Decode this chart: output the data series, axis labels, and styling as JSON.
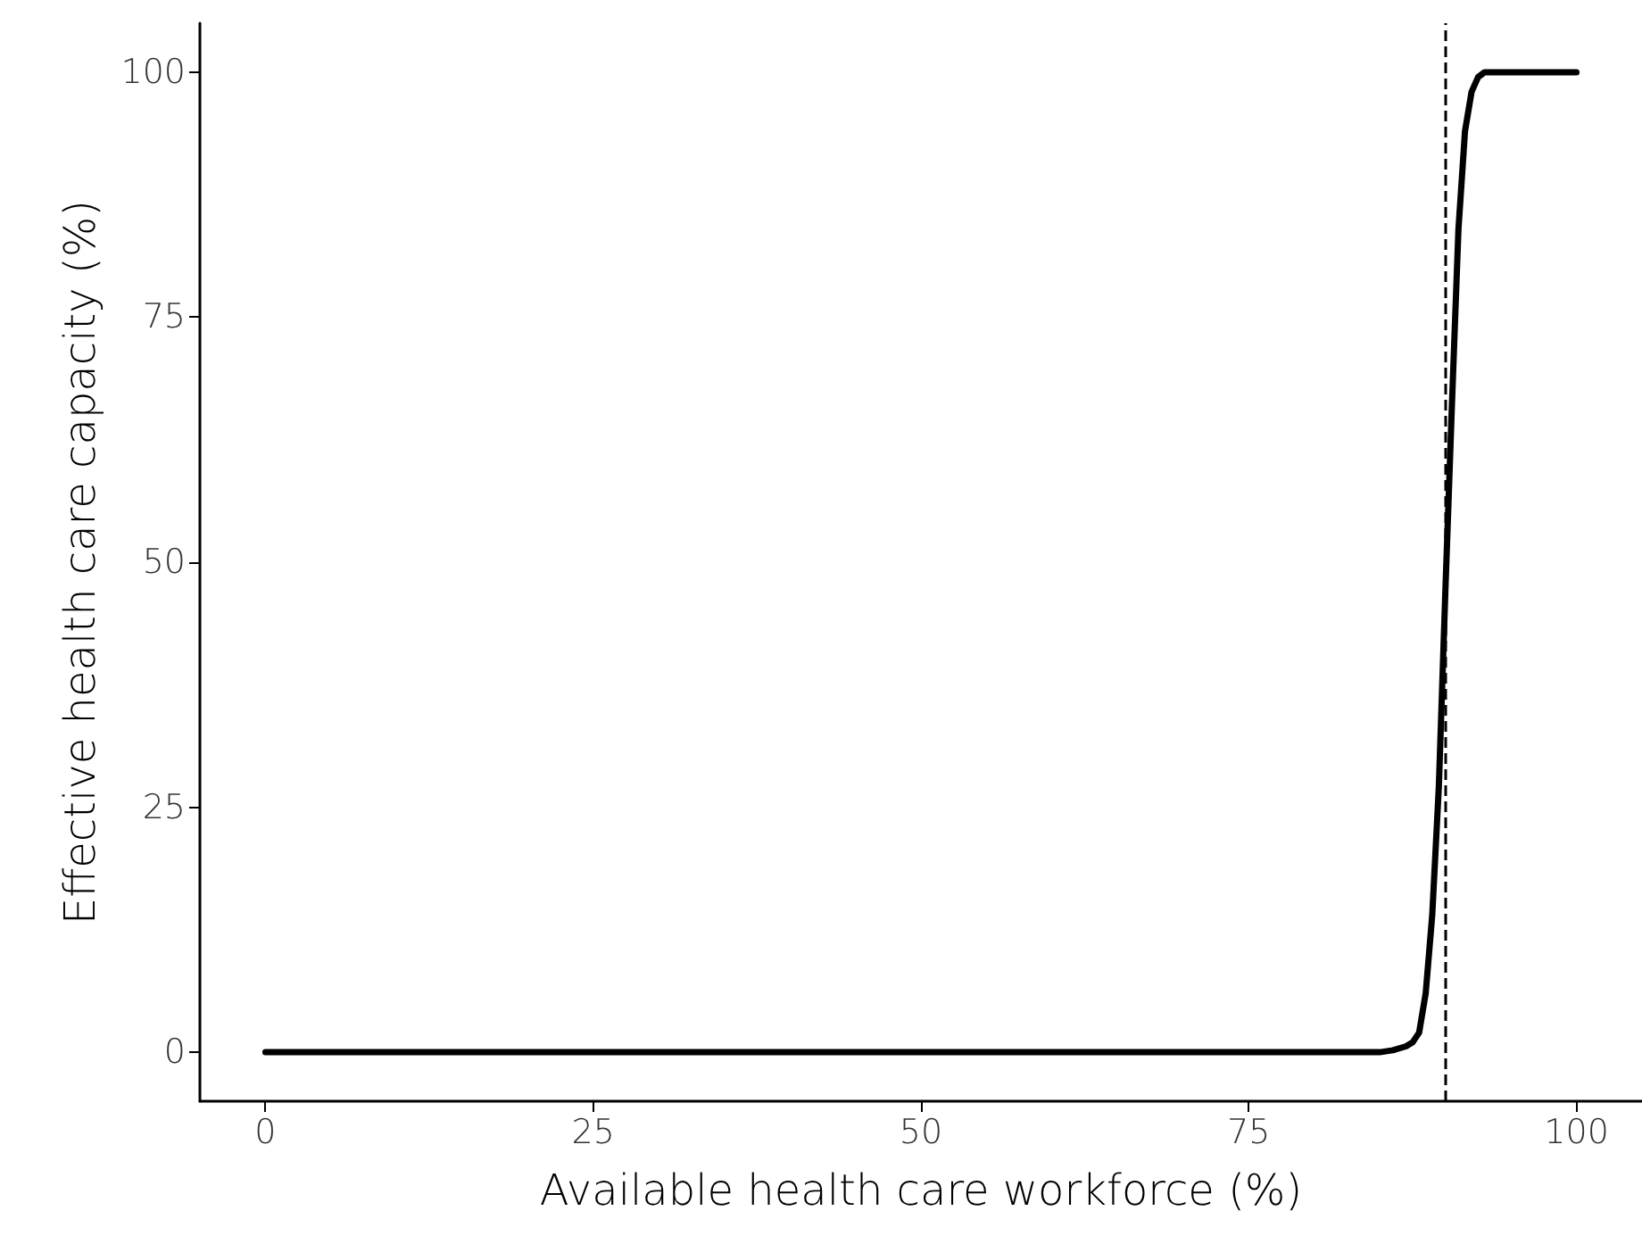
{
  "chart_data": {
    "type": "line",
    "xlabel": "Available health care workforce (%)",
    "ylabel": "Effective health care capacity (%)",
    "series": [
      {
        "color": "#000000",
        "x": [
          0,
          80,
          85,
          86,
          87,
          87.5,
          88,
          88.5,
          89,
          89.5,
          90,
          90.5,
          91,
          91.5,
          92,
          92.5,
          93,
          94,
          100
        ],
        "values": [
          0,
          0,
          0,
          0.2,
          0.6,
          1,
          2,
          6,
          14,
          27,
          47,
          66,
          84,
          94,
          98,
          99.5,
          100,
          100,
          100
        ]
      }
    ],
    "xlim": [
      -5,
      105
    ],
    "xticks": [
      0,
      25,
      50,
      75,
      100
    ],
    "ylim": [
      -5,
      105
    ],
    "yticks": [
      0,
      25,
      50,
      75,
      100
    ],
    "ref_lines": [
      {
        "axis": "x",
        "value": 90,
        "color": "#000000",
        "line_style": "dashed"
      }
    ],
    "grid": false,
    "marker": "none",
    "line_style": "solid"
  }
}
